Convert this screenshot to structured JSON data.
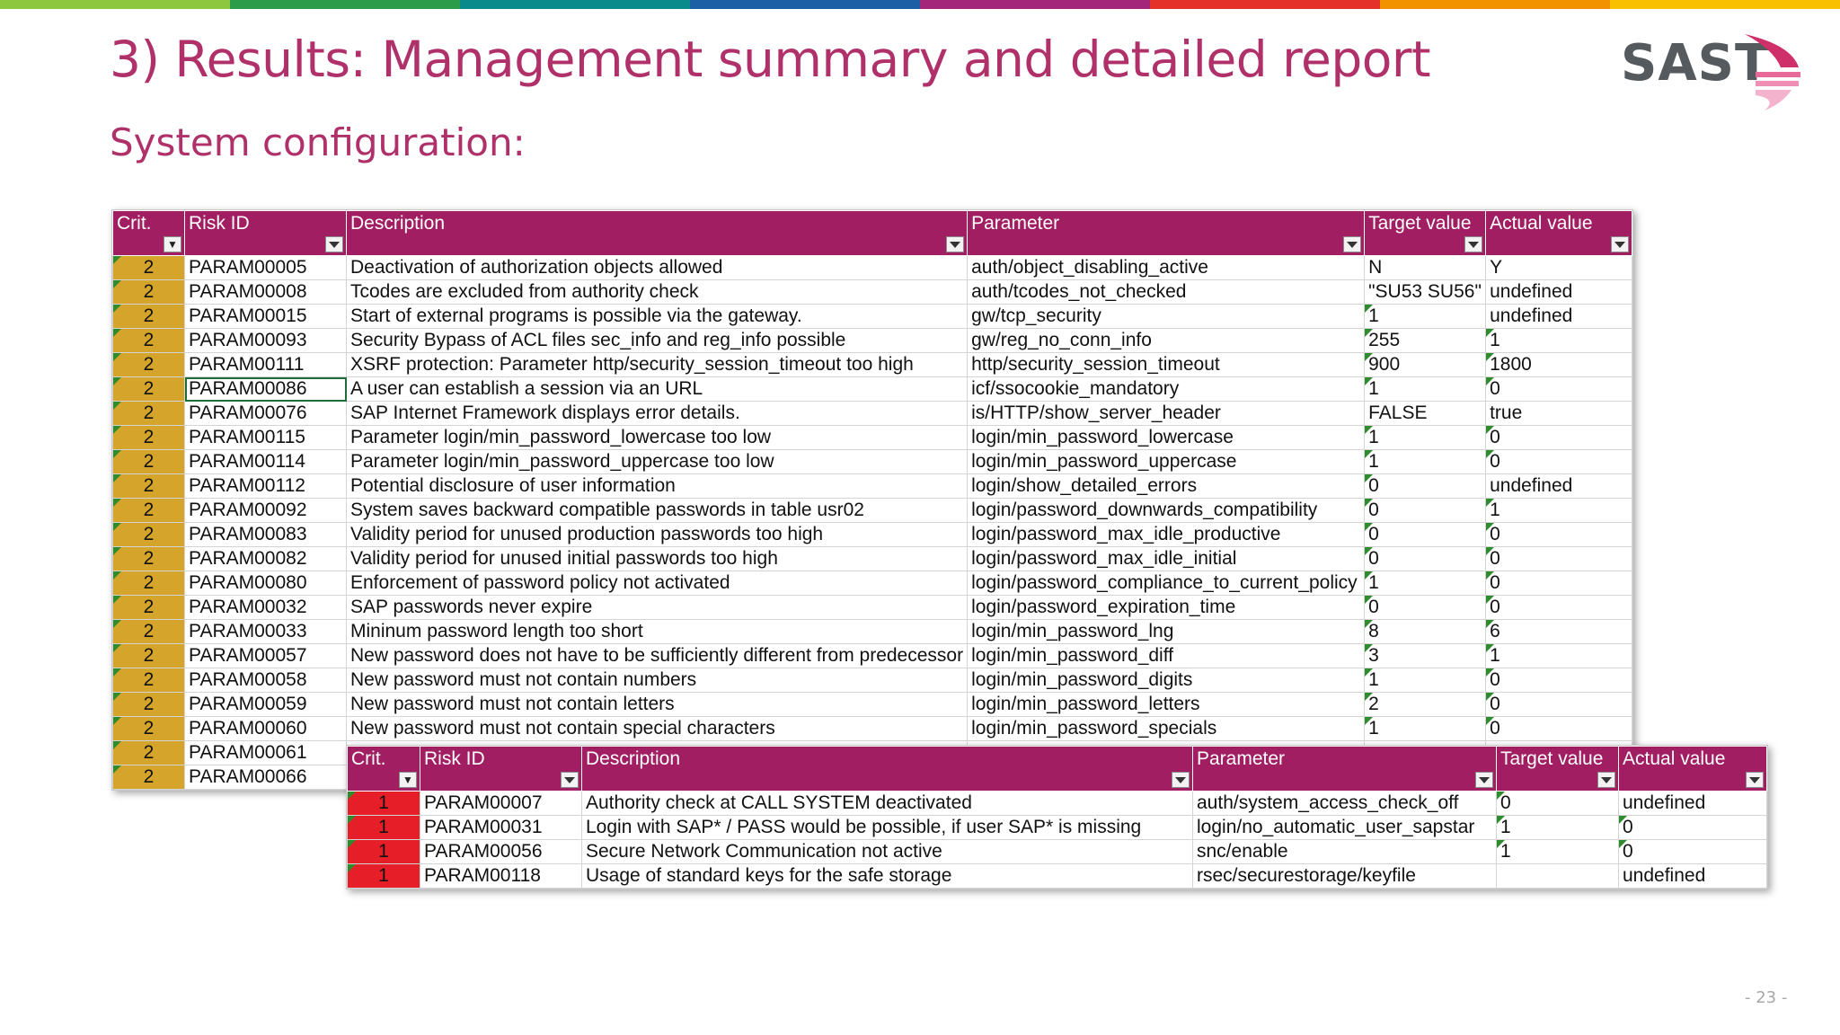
{
  "colors": {
    "title": "#b0306a",
    "header_bg": "#a11e63",
    "crit2": "#d4a52a",
    "crit1": "#e61e28",
    "topbar": [
      "#8dc63f",
      "#2d9c4a",
      "#0a8a8a",
      "#1d5fa5",
      "#a3267a",
      "#e4322b",
      "#f39200",
      "#f9c000"
    ]
  },
  "slide": {
    "title": "3) Results: Management summary and detailed report",
    "subtitle": "System configuration:",
    "page": "- 23 -"
  },
  "logo": {
    "text": "SAST"
  },
  "table1": {
    "headers": [
      "Crit.",
      "Risk ID",
      "Description",
      "Parameter",
      "Target value",
      "Actual value"
    ],
    "rows": [
      [
        "2",
        "PARAM00005",
        "Deactivation of authorization objects allowed",
        "auth/object_disabling_active",
        "N",
        "Y"
      ],
      [
        "2",
        "PARAM00008",
        "Tcodes are excluded from authority check",
        "auth/tcodes_not_checked",
        "\"SU53 SU56\"",
        "undefined"
      ],
      [
        "2",
        "PARAM00015",
        "Start of external programs is possible via the gateway.",
        "gw/tcp_security",
        "1",
        "undefined"
      ],
      [
        "2",
        "PARAM00093",
        "Security Bypass of ACL files sec_info and reg_info possible",
        "gw/reg_no_conn_info",
        "255",
        "1"
      ],
      [
        "2",
        "PARAM00111",
        "XSRF protection: Parameter http/security_session_timeout too high",
        "http/security_session_timeout",
        "900",
        "1800"
      ],
      [
        "2",
        "PARAM00086",
        "A user can establish a session via an URL",
        "icf/ssocookie_mandatory",
        "1",
        "0"
      ],
      [
        "2",
        "PARAM00076",
        "SAP Internet Framework displays error details.",
        "is/HTTP/show_server_header",
        "FALSE",
        "true"
      ],
      [
        "2",
        "PARAM00115",
        "Parameter login/min_password_lowercase too low",
        "login/min_password_lowercase",
        "1",
        "0"
      ],
      [
        "2",
        "PARAM00114",
        "Parameter login/min_password_uppercase too low",
        "login/min_password_uppercase",
        "1",
        "0"
      ],
      [
        "2",
        "PARAM00112",
        "Potential disclosure of user information",
        "login/show_detailed_errors",
        "0",
        "undefined"
      ],
      [
        "2",
        "PARAM00092",
        "System saves backward compatible passwords in table usr02",
        "login/password_downwards_compatibility",
        "0",
        "1"
      ],
      [
        "2",
        "PARAM00083",
        "Validity period for unused production passwords too high",
        "login/password_max_idle_productive",
        "0",
        "0"
      ],
      [
        "2",
        "PARAM00082",
        "Validity period for unused initial passwords too high",
        "login/password_max_idle_initial",
        "0",
        "0"
      ],
      [
        "2",
        "PARAM00080",
        "Enforcement of password policy not activated",
        "login/password_compliance_to_current_policy",
        "1",
        "0"
      ],
      [
        "2",
        "PARAM00032",
        "SAP passwords never expire",
        "login/password_expiration_time",
        "0",
        "0"
      ],
      [
        "2",
        "PARAM00033",
        "Mininum password length too short",
        "login/min_password_lng",
        "8",
        "6"
      ],
      [
        "2",
        "PARAM00057",
        "New password does not have to be sufficiently different from predecessor",
        "login/min_password_diff",
        "3",
        "1"
      ],
      [
        "2",
        "PARAM00058",
        "New password must not contain numbers",
        "login/min_password_digits",
        "1",
        "0"
      ],
      [
        "2",
        "PARAM00059",
        "New password must not contain letters",
        "login/min_password_letters",
        "2",
        "0"
      ],
      [
        "2",
        "PARAM00060",
        "New password must not contain special characters",
        "login/min_password_specials",
        "1",
        "0"
      ],
      [
        "2",
        "PARAM00061",
        "",
        "",
        "",
        ""
      ],
      [
        "2",
        "PARAM00066",
        "",
        "",
        "",
        ""
      ]
    ]
  },
  "table2": {
    "headers": [
      "Crit.",
      "Risk ID",
      "Description",
      "Parameter",
      "Target value",
      "Actual value"
    ],
    "rows": [
      [
        "1",
        "PARAM00007",
        "Authority check at CALL SYSTEM deactivated",
        "auth/system_access_check_off",
        "0",
        "undefined"
      ],
      [
        "1",
        "PARAM00031",
        "Login with SAP* / PASS would be possible, if user SAP* is missing",
        "login/no_automatic_user_sapstar",
        "1",
        "0"
      ],
      [
        "1",
        "PARAM00056",
        "Secure Network Communication not active",
        "snc/enable",
        "1",
        "0"
      ],
      [
        "1",
        "PARAM00118",
        "Usage of standard keys for the safe storage",
        "rsec/securestorage/keyfile",
        "",
        "undefined"
      ]
    ]
  }
}
